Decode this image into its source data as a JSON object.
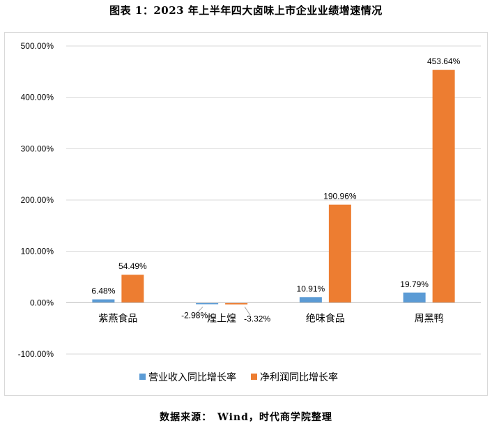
{
  "title": "图表 1：2023 年上半年四大卤味上市企业业绩增速情况",
  "source": "数据来源：　Wind，时代商学院整理",
  "colors": {
    "revenue": "#5b9bd5",
    "profit": "#ed7d31",
    "grid": "#d9d9d9"
  },
  "chart_data": {
    "type": "bar",
    "categories": [
      "紫燕食品",
      "煌上煌",
      "绝味食品",
      "周黑鸭"
    ],
    "series": [
      {
        "name": "营业收入同比增长率",
        "values": [
          6.48,
          -2.98,
          10.91,
          19.79
        ],
        "labels": [
          "6.48%",
          "-2.98%",
          "10.91%",
          "19.79%"
        ]
      },
      {
        "name": "净利润同比增长率",
        "values": [
          54.49,
          -3.32,
          190.96,
          453.64
        ],
        "labels": [
          "54.49%",
          "-3.32%",
          "190.96%",
          "453.64%"
        ]
      }
    ],
    "yticks": [
      "500.00%",
      "400.00%",
      "300.00%",
      "200.00%",
      "100.00%",
      "0.00%",
      "-100.00%"
    ],
    "ylim": [
      -100,
      500
    ],
    "grid": true,
    "legend": "bottom"
  }
}
